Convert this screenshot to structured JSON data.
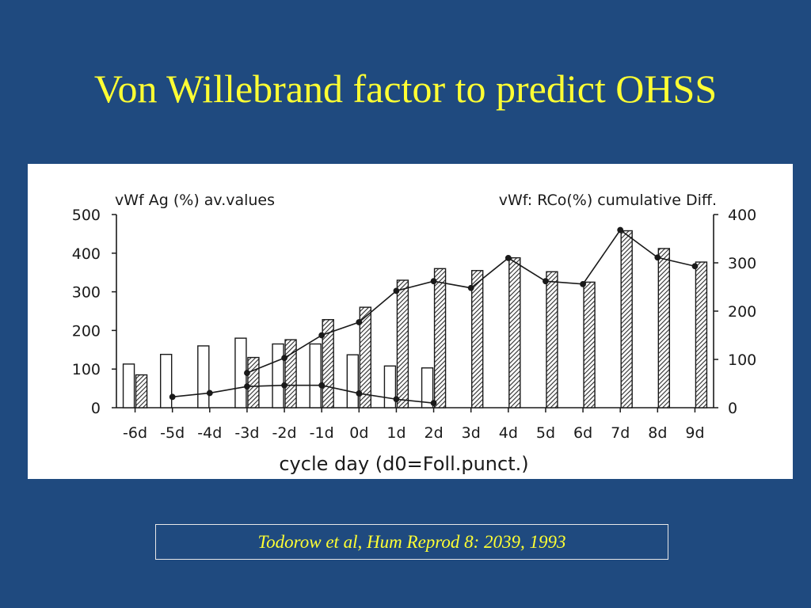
{
  "slide": {
    "title": "Von Willebrand factor to predict OHSS",
    "citation": "Todorow et al, Hum Reprod 8: 2039, 1993"
  },
  "colors": {
    "background": "#1f4a7f",
    "title": "#ffff33",
    "citation": "#ffff33",
    "panel": "#ffffff",
    "ink": "#1a1a1a"
  },
  "chart_data": {
    "type": "bar",
    "left_axis_label": "vWf Ag (%) av.values",
    "right_axis_label": "vWf: RCo(%) cumulative Diff.",
    "xlabel": "cycle day (d0=Foll.punct.)",
    "categories": [
      "-6d",
      "-5d",
      "-4d",
      "-3d",
      "-2d",
      "-1d",
      "0d",
      "1d",
      "2d",
      "3d",
      "4d",
      "5d",
      "6d",
      "7d",
      "8d",
      "9d"
    ],
    "left_ylim": [
      0,
      500
    ],
    "left_ticks": [
      "0",
      "100",
      "200",
      "300",
      "400",
      "500"
    ],
    "right_ylim": [
      0,
      400
    ],
    "right_ticks": [
      "0",
      "100",
      "200",
      "300",
      "400"
    ],
    "grid": false,
    "series": [
      {
        "style": "open-bar",
        "axis": "left",
        "values": [
          113,
          138,
          160,
          180,
          165,
          165,
          137,
          108,
          103,
          null,
          null,
          null,
          null,
          null,
          null,
          null
        ]
      },
      {
        "style": "hatched-bar",
        "axis": "left",
        "values": [
          85,
          null,
          null,
          130,
          176,
          228,
          260,
          330,
          360,
          355,
          388,
          352,
          325,
          458,
          412,
          377
        ]
      },
      {
        "style": "line-open-marker",
        "axis": "left",
        "values": [
          null,
          28,
          38,
          55,
          58,
          58,
          37,
          22,
          12,
          null,
          null,
          null,
          null,
          null,
          null,
          null
        ]
      },
      {
        "style": "line-filled-marker",
        "axis": "right",
        "values": [
          null,
          null,
          null,
          72,
          103,
          150,
          177,
          242,
          262,
          248,
          310,
          262,
          256,
          368,
          311,
          293
        ]
      }
    ]
  }
}
